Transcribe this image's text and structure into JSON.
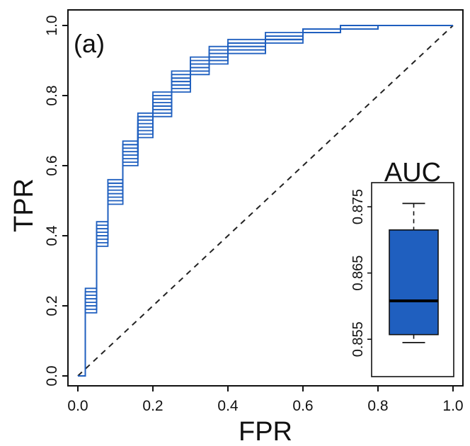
{
  "chart_data": {
    "type": "line",
    "panel_label": "(a)",
    "xlabel": "FPR",
    "ylabel": "TPR",
    "xlim": [
      0,
      1
    ],
    "ylim": [
      0,
      1
    ],
    "x_ticks": [
      "0.0",
      "0.2",
      "0.4",
      "0.6",
      "0.8",
      "1.0"
    ],
    "y_ticks": [
      "0.0",
      "0.2",
      "0.4",
      "0.6",
      "0.8",
      "1.0"
    ],
    "line_color": "#1f5fbf",
    "diagonal": {
      "from": [
        0,
        0
      ],
      "to": [
        1,
        1
      ],
      "style": "dashed"
    },
    "series": [
      {
        "x": [
          0,
          0.02,
          0.05,
          0.08,
          0.12,
          0.16,
          0.2,
          0.25,
          0.3,
          0.35,
          0.4,
          0.5,
          0.6,
          0.7,
          0.8,
          1.0
        ],
        "values": [
          0,
          0.23,
          0.42,
          0.54,
          0.65,
          0.73,
          0.79,
          0.85,
          0.89,
          0.92,
          0.94,
          0.97,
          0.99,
          1.0,
          1.0,
          1.0
        ]
      },
      {
        "x": [
          0,
          0.02,
          0.05,
          0.08,
          0.12,
          0.16,
          0.2,
          0.25,
          0.3,
          0.35,
          0.4,
          0.5,
          0.6,
          0.7,
          0.8,
          1.0
        ],
        "values": [
          0,
          0.2,
          0.39,
          0.51,
          0.62,
          0.7,
          0.76,
          0.83,
          0.87,
          0.9,
          0.93,
          0.96,
          0.98,
          0.99,
          1.0,
          1.0
        ]
      },
      {
        "x": [
          0,
          0.02,
          0.05,
          0.08,
          0.12,
          0.16,
          0.2,
          0.25,
          0.3,
          0.35,
          0.4,
          0.5,
          0.6,
          0.7,
          0.8,
          1.0
        ],
        "values": [
          0,
          0.25,
          0.44,
          0.56,
          0.67,
          0.75,
          0.81,
          0.87,
          0.91,
          0.94,
          0.96,
          0.98,
          0.99,
          1.0,
          1.0,
          1.0
        ]
      },
      {
        "x": [
          0,
          0.02,
          0.05,
          0.08,
          0.12,
          0.16,
          0.2,
          0.25,
          0.3,
          0.35,
          0.4,
          0.5,
          0.6,
          0.7,
          0.8,
          1.0
        ],
        "values": [
          0,
          0.18,
          0.37,
          0.49,
          0.6,
          0.68,
          0.74,
          0.81,
          0.86,
          0.89,
          0.92,
          0.95,
          0.98,
          0.99,
          1.0,
          1.0
        ]
      },
      {
        "x": [
          0,
          0.02,
          0.05,
          0.08,
          0.12,
          0.16,
          0.2,
          0.25,
          0.3,
          0.35,
          0.4,
          0.5,
          0.6,
          0.7,
          0.8,
          1.0
        ],
        "values": [
          0,
          0.22,
          0.41,
          0.53,
          0.64,
          0.72,
          0.78,
          0.84,
          0.88,
          0.91,
          0.94,
          0.97,
          0.99,
          1.0,
          1.0,
          1.0
        ]
      },
      {
        "x": [
          0,
          0.02,
          0.05,
          0.08,
          0.12,
          0.16,
          0.2,
          0.25,
          0.3,
          0.35,
          0.4,
          0.5,
          0.6,
          0.7,
          0.8,
          1.0
        ],
        "values": [
          0,
          0.21,
          0.4,
          0.52,
          0.63,
          0.71,
          0.77,
          0.83,
          0.88,
          0.91,
          0.93,
          0.96,
          0.98,
          0.99,
          1.0,
          1.0
        ]
      },
      {
        "x": [
          0,
          0.02,
          0.05,
          0.08,
          0.12,
          0.16,
          0.2,
          0.25,
          0.3,
          0.35,
          0.4,
          0.5,
          0.6,
          0.7,
          0.8,
          1.0
        ],
        "values": [
          0,
          0.24,
          0.43,
          0.55,
          0.66,
          0.74,
          0.8,
          0.86,
          0.9,
          0.93,
          0.95,
          0.97,
          0.99,
          1.0,
          1.0,
          1.0
        ]
      },
      {
        "x": [
          0,
          0.02,
          0.05,
          0.08,
          0.12,
          0.16,
          0.2,
          0.25,
          0.3,
          0.35,
          0.4,
          0.5,
          0.6,
          0.7,
          0.8,
          1.0
        ],
        "values": [
          0,
          0.19,
          0.38,
          0.5,
          0.61,
          0.69,
          0.75,
          0.82,
          0.87,
          0.9,
          0.92,
          0.96,
          0.98,
          0.99,
          1.0,
          1.0
        ]
      },
      {
        "x": [
          0,
          0.02,
          0.05,
          0.08,
          0.12,
          0.16,
          0.2,
          0.25,
          0.3,
          0.35,
          0.4,
          0.5,
          0.6,
          0.7,
          0.8,
          1.0
        ],
        "values": [
          0,
          0.22,
          0.42,
          0.55,
          0.66,
          0.74,
          0.79,
          0.85,
          0.89,
          0.92,
          0.95,
          0.97,
          0.99,
          1.0,
          1.0,
          1.0
        ]
      },
      {
        "x": [
          0,
          0.02,
          0.05,
          0.08,
          0.12,
          0.16,
          0.2,
          0.25,
          0.3,
          0.35,
          0.4,
          0.5,
          0.6,
          0.7,
          0.8,
          1.0
        ],
        "values": [
          0,
          0.2,
          0.4,
          0.52,
          0.63,
          0.71,
          0.77,
          0.84,
          0.88,
          0.91,
          0.93,
          0.96,
          0.98,
          1.0,
          1.0,
          1.0
        ]
      }
    ],
    "inset": {
      "type": "boxplot",
      "title": "AUC",
      "ylim": [
        0.85,
        0.878
      ],
      "y_ticks": [
        "0.855",
        "0.865",
        "0.875"
      ],
      "box_color": "#1f5fbf",
      "whisker_low": 0.8545,
      "q1": 0.8557,
      "median": 0.8608,
      "q3": 0.8715,
      "whisker_high": 0.8755
    }
  }
}
